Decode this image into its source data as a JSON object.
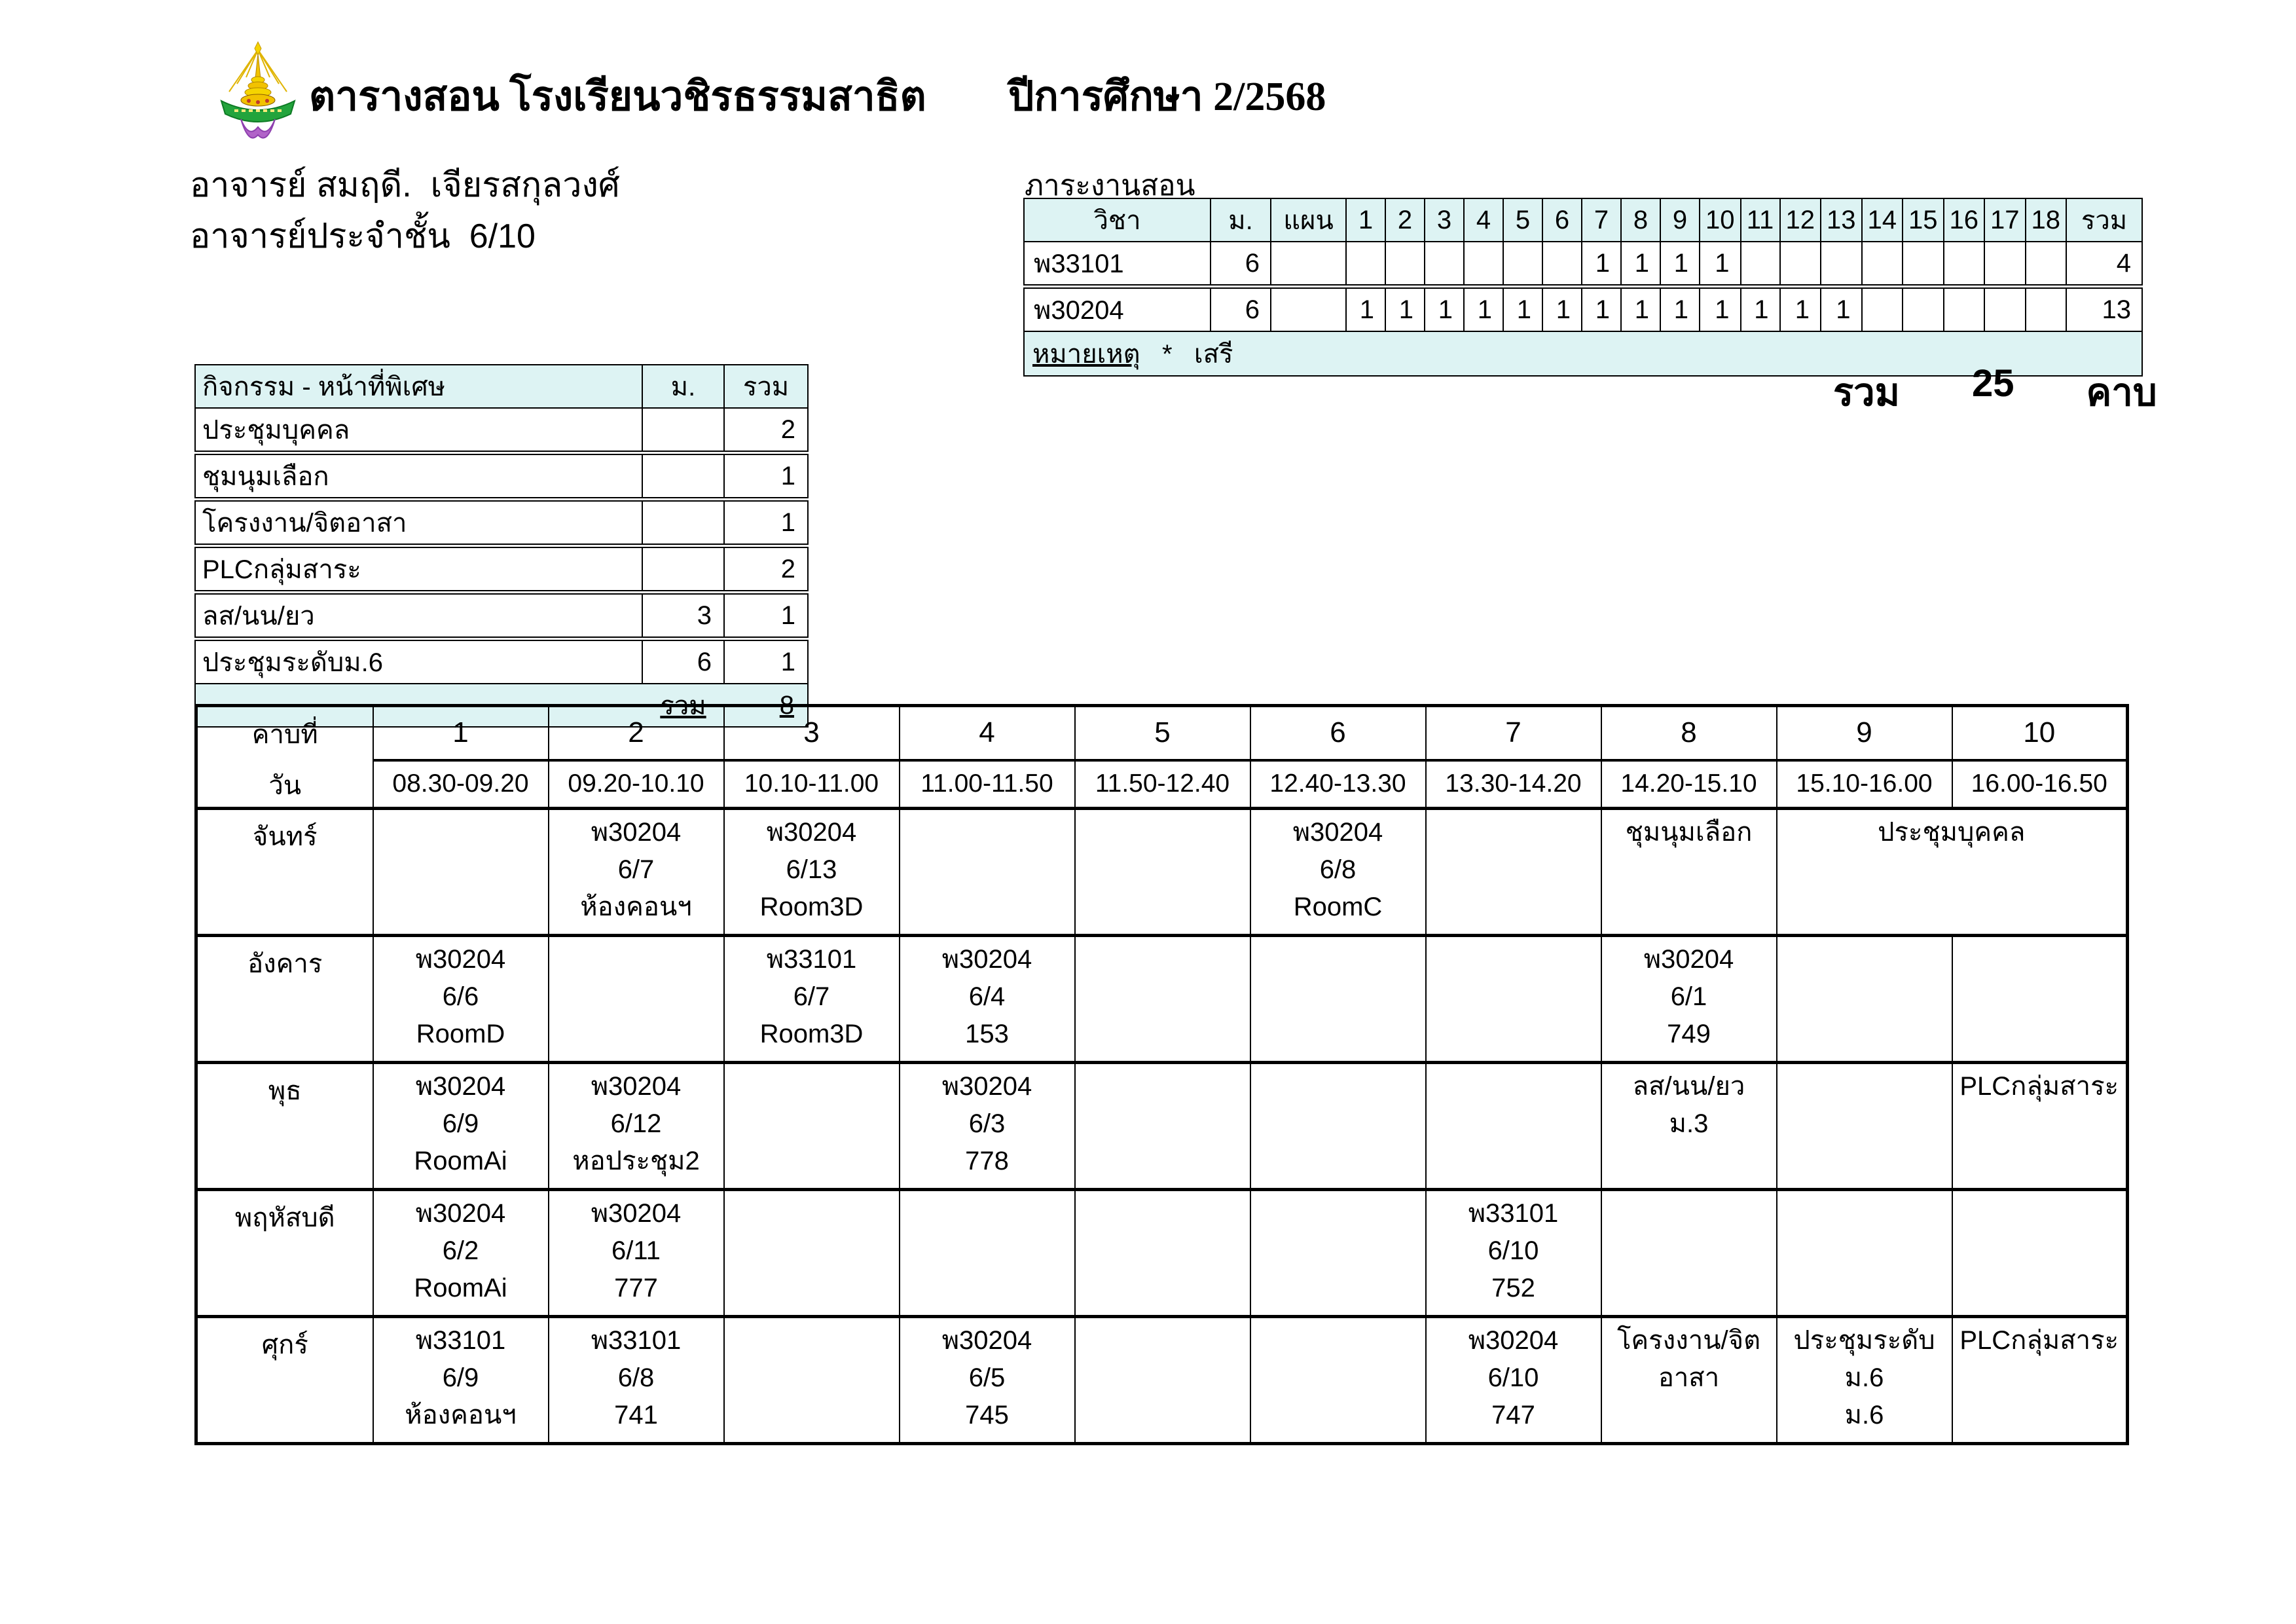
{
  "colors": {
    "header_bg": "#ddf3f3",
    "border": "#000000"
  },
  "page": {
    "title": "ตารางสอน โรงเรียนวชิรธรรมสาธิต",
    "academic_year": "ปีการศึกษา 2/2568",
    "teacher_line1": "อาจารย์ สมฤดี.  เจียรสกุลวงศ์",
    "teacher_line2": "อาจารย์ประจำชั้น  6/10",
    "logo_name": "school-crest"
  },
  "load_table": {
    "label": "ภาระงานสอน",
    "headers": [
      "วิชา",
      "ม.",
      "แผน",
      "1",
      "2",
      "3",
      "4",
      "5",
      "6",
      "7",
      "8",
      "9",
      "10",
      "11",
      "12",
      "13",
      "14",
      "15",
      "16",
      "17",
      "18",
      "รวม"
    ],
    "rows": [
      {
        "subject": "พ33101",
        "m": "6",
        "plan": "",
        "periods": [
          "",
          "",
          "",
          "",
          "",
          "",
          "1",
          "1",
          "1",
          "1",
          "",
          "",
          "",
          "",
          "",
          "",
          "",
          ""
        ],
        "total": "4"
      },
      {
        "subject": "พ30204",
        "m": "6",
        "plan": "",
        "periods": [
          "1",
          "1",
          "1",
          "1",
          "1",
          "1",
          "1",
          "1",
          "1",
          "1",
          "1",
          "1",
          "1",
          "",
          "",
          "",
          "",
          ""
        ],
        "total": "13"
      }
    ],
    "note_label": "หมายเหตุ",
    "note_star": "*",
    "note_text": "เสรี",
    "grand_total_label": "รวม",
    "grand_total_value": "25",
    "grand_total_unit": "คาบ"
  },
  "activities_table": {
    "headers": {
      "name": "กิจกรรม - หน้าที่พิเศษ",
      "m": "ม.",
      "total": "รวม"
    },
    "rows": [
      {
        "name": "ประชุมบุคคล",
        "m": "",
        "total": "2"
      },
      {
        "name": "ชุมนุมเลือก",
        "m": "",
        "total": "1"
      },
      {
        "name": "โครงงาน/จิตอาสา",
        "m": "",
        "total": "1"
      },
      {
        "name": "PLCกลุ่มสาระ",
        "m": "",
        "total": "2"
      },
      {
        "name": "ลส/นน/ยว",
        "m": "3",
        "total": "1"
      },
      {
        "name": "ประชุมระดับม.6",
        "m": "6",
        "total": "1"
      }
    ],
    "footer": {
      "label": "รวม",
      "value": "8"
    }
  },
  "timetable": {
    "corner_top": "คาบที่",
    "corner_bottom": "วัน",
    "periods": [
      "1",
      "2",
      "3",
      "4",
      "5",
      "6",
      "7",
      "8",
      "9",
      "10"
    ],
    "times": [
      "08.30-09.20",
      "09.20-10.10",
      "10.10-11.00",
      "11.00-11.50",
      "11.50-12.40",
      "12.40-13.30",
      "13.30-14.20",
      "14.20-15.10",
      "15.10-16.00",
      "16.00-16.50"
    ],
    "days": [
      {
        "name": "จันทร์",
        "cells": [
          {
            "lines": [],
            "span": 1
          },
          {
            "lines": [
              "พ30204",
              "6/7",
              "ห้องคอนฯ"
            ],
            "span": 1
          },
          {
            "lines": [
              "พ30204",
              "6/13",
              "Room3D"
            ],
            "span": 1
          },
          {
            "lines": [],
            "span": 1
          },
          {
            "lines": [],
            "span": 1
          },
          {
            "lines": [
              "พ30204",
              "6/8",
              "RoomC"
            ],
            "span": 1
          },
          {
            "lines": [],
            "span": 1
          },
          {
            "lines": [
              "ชุมนุมเลือก"
            ],
            "span": 1
          },
          {
            "lines": [
              "ประชุมบุคคล"
            ],
            "span": 2
          }
        ]
      },
      {
        "name": "อังคาร",
        "cells": [
          {
            "lines": [
              "พ30204",
              "6/6",
              "RoomD"
            ],
            "span": 1
          },
          {
            "lines": [],
            "span": 1
          },
          {
            "lines": [
              "พ33101",
              "6/7",
              "Room3D"
            ],
            "span": 1
          },
          {
            "lines": [
              "พ30204",
              "6/4",
              "153"
            ],
            "span": 1
          },
          {
            "lines": [],
            "span": 1
          },
          {
            "lines": [],
            "span": 1
          },
          {
            "lines": [],
            "span": 1
          },
          {
            "lines": [
              "พ30204",
              "6/1",
              "749"
            ],
            "span": 1
          },
          {
            "lines": [],
            "span": 1
          },
          {
            "lines": [],
            "span": 1
          }
        ]
      },
      {
        "name": "พุธ",
        "cells": [
          {
            "lines": [
              "พ30204",
              "6/9",
              "RoomAi"
            ],
            "span": 1
          },
          {
            "lines": [
              "พ30204",
              "6/12",
              "หอประชุม2"
            ],
            "span": 1
          },
          {
            "lines": [],
            "span": 1
          },
          {
            "lines": [
              "พ30204",
              "6/3",
              "778"
            ],
            "span": 1
          },
          {
            "lines": [],
            "span": 1
          },
          {
            "lines": [],
            "span": 1
          },
          {
            "lines": [],
            "span": 1
          },
          {
            "lines": [
              "ลส/นน/ยว",
              "ม.3"
            ],
            "span": 1
          },
          {
            "lines": [],
            "span": 1
          },
          {
            "lines": [
              "PLCกลุ่มสาระ"
            ],
            "span": 1
          }
        ]
      },
      {
        "name": "พฤหัสบดี",
        "cells": [
          {
            "lines": [
              "พ30204",
              "6/2",
              "RoomAi"
            ],
            "span": 1
          },
          {
            "lines": [
              "พ30204",
              "6/11",
              "777"
            ],
            "span": 1
          },
          {
            "lines": [],
            "span": 1
          },
          {
            "lines": [],
            "span": 1
          },
          {
            "lines": [],
            "span": 1
          },
          {
            "lines": [],
            "span": 1
          },
          {
            "lines": [
              "พ33101",
              "6/10",
              "752"
            ],
            "span": 1
          },
          {
            "lines": [],
            "span": 1
          },
          {
            "lines": [],
            "span": 1
          },
          {
            "lines": [],
            "span": 1
          }
        ]
      },
      {
        "name": "ศุกร์",
        "cells": [
          {
            "lines": [
              "พ33101",
              "6/9",
              "ห้องคอนฯ"
            ],
            "span": 1
          },
          {
            "lines": [
              "พ33101",
              "6/8",
              "741"
            ],
            "span": 1
          },
          {
            "lines": [],
            "span": 1
          },
          {
            "lines": [
              "พ30204",
              "6/5",
              "745"
            ],
            "span": 1
          },
          {
            "lines": [],
            "span": 1
          },
          {
            "lines": [],
            "span": 1
          },
          {
            "lines": [
              "พ30204",
              "6/10",
              "747"
            ],
            "span": 1
          },
          {
            "lines": [
              "โครงงาน/จิต",
              "อาสา"
            ],
            "span": 1
          },
          {
            "lines": [
              "ประชุมระดับ",
              "ม.6",
              "ม.6"
            ],
            "span": 1
          },
          {
            "lines": [
              "PLCกลุ่มสาระ"
            ],
            "span": 1
          }
        ]
      }
    ]
  }
}
